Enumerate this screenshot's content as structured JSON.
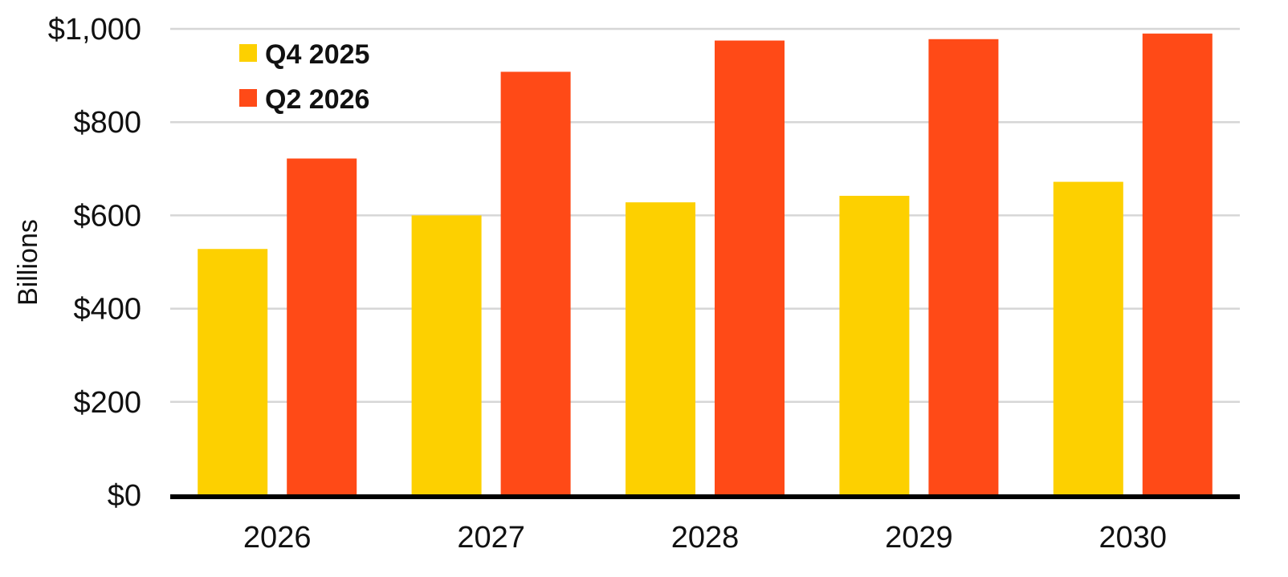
{
  "chart_data": {
    "type": "bar",
    "categories": [
      "2026",
      "2027",
      "2028",
      "2029",
      "2030"
    ],
    "series": [
      {
        "name": "Q4 2025",
        "color": "#FDD000",
        "values": [
          528,
          600,
          628,
          642,
          672
        ]
      },
      {
        "name": "Q2 2026",
        "color": "#FF4A17",
        "values": [
          722,
          908,
          975,
          978,
          990
        ]
      }
    ],
    "title": "",
    "xlabel": "",
    "ylabel": "Billions",
    "ylim": [
      0,
      1000
    ],
    "yticks": [
      0,
      200,
      400,
      600,
      800,
      1000
    ],
    "ytick_labels": [
      "$0",
      "$200",
      "$400",
      "$600",
      "$800",
      "$1,000"
    ],
    "grid": true,
    "gridline_color": "#D6D6D6",
    "baseline_color": "#000000",
    "legend": {
      "position": "top-left",
      "entries": [
        "Q4 2025",
        "Q2 2026"
      ]
    }
  }
}
